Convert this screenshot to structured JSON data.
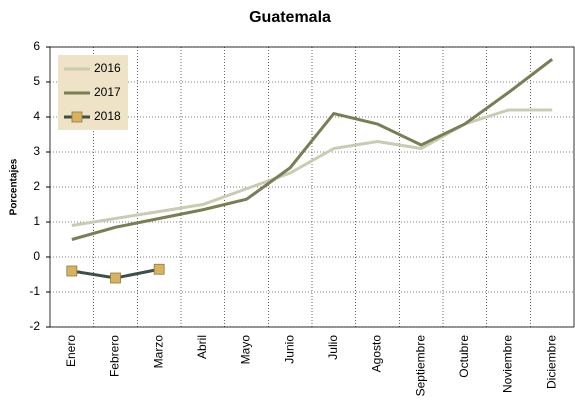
{
  "chart_data": {
    "type": "line",
    "title": "Guatemala",
    "y_label": "Porcentajes",
    "categories": [
      "Enero",
      "Febrero",
      "Marzo",
      "Abril",
      "Mayo",
      "Junio",
      "Julio",
      "Agosto",
      "Septiembre",
      "Octubre",
      "Noviembre",
      "Diciembre"
    ],
    "series": [
      {
        "name": "2016",
        "color": "#c9ccb2",
        "values": [
          0.9,
          1.1,
          1.3,
          1.5,
          1.95,
          2.4,
          3.1,
          3.3,
          3.1,
          3.8,
          4.2,
          4.2
        ]
      },
      {
        "name": "2017",
        "color": "#7b7d55",
        "values": [
          0.5,
          0.85,
          1.1,
          1.35,
          1.65,
          2.55,
          4.1,
          3.8,
          3.2,
          3.8,
          4.7,
          5.65
        ]
      },
      {
        "name": "2018",
        "color": "#3d5045",
        "marker_color": "#d9b25e",
        "values": [
          -0.4,
          -0.6,
          -0.35,
          null,
          null,
          null,
          null,
          null,
          null,
          null,
          null,
          null
        ]
      }
    ],
    "ylim": [
      -2,
      6
    ],
    "yticks": [
      -2,
      -1,
      0,
      1,
      2,
      3,
      4,
      5,
      6
    ],
    "grid": true,
    "legend": "upper left"
  }
}
